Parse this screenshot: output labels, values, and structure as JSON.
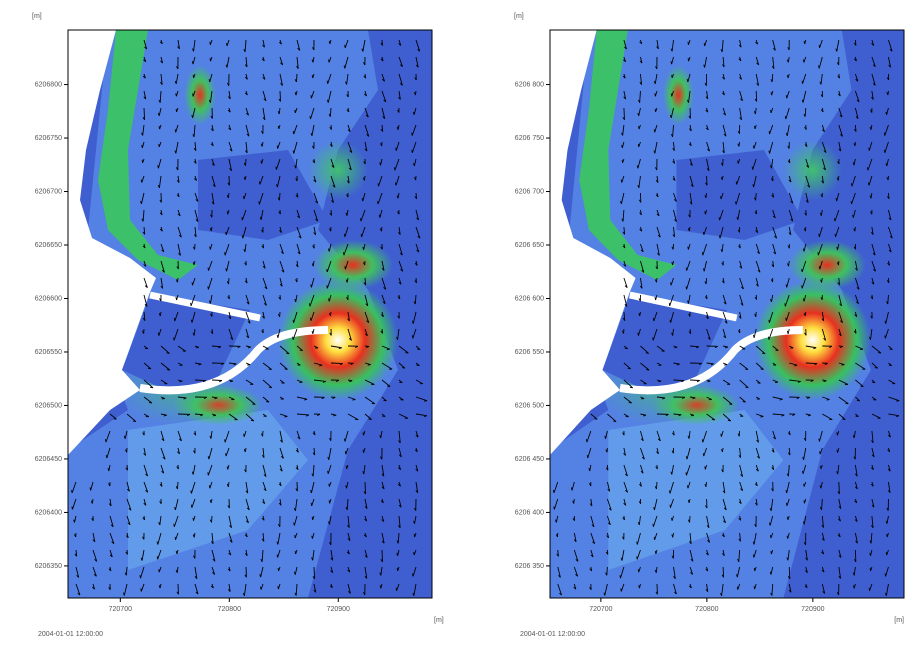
{
  "chart_data": [
    {
      "type": "vector-field",
      "y_label": "[m]",
      "x_label": "[m]",
      "timestamp": "2004-01-01 12:00:00",
      "xlim": [
        720652,
        720986
      ],
      "ylim": [
        6206320,
        6206851
      ],
      "xticks": [
        720700,
        720800,
        720900
      ],
      "yticks": [
        6206350,
        6206400,
        6206450,
        6206500,
        6206550,
        6206600,
        6206650,
        6206700,
        6206750,
        6206800
      ]
    },
    {
      "type": "vector-field",
      "y_label": "[m]",
      "x_label": "[m]",
      "timestamp": "2004-01-01 12:00:00",
      "xlim": [
        720652,
        720986
      ],
      "ylim": [
        6206320,
        6206851
      ],
      "xticks": [
        720700,
        720800,
        720900
      ],
      "yticks": [
        {
          "value": 6206350,
          "label": "6206 350"
        },
        {
          "value": 6206400,
          "label": "6206 400"
        },
        {
          "value": 6206450,
          "label": "6206 450"
        },
        {
          "value": 6206500,
          "label": "6206 500"
        },
        {
          "value": 6206550,
          "label": "6206 550"
        },
        {
          "value": 6206600,
          "label": "6206 600"
        },
        {
          "value": 6206650,
          "label": "6206 650"
        },
        {
          "value": 6206700,
          "label": "6206 700"
        },
        {
          "value": 6206750,
          "label": "6206 750"
        },
        {
          "value": 6206800,
          "label": "6206 800"
        }
      ]
    }
  ]
}
